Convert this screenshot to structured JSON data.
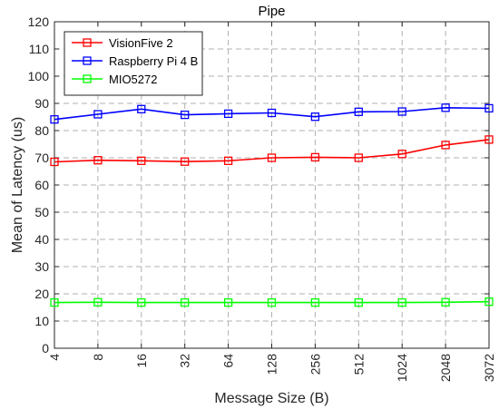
{
  "chart_data": {
    "type": "line",
    "title": "Pipe",
    "xlabel": "Message Size (B)",
    "ylabel": "Mean of Latency (us)",
    "categories": [
      "4",
      "8",
      "16",
      "32",
      "64",
      "128",
      "256",
      "512",
      "1024",
      "2048",
      "3072"
    ],
    "ylim": [
      0,
      120
    ],
    "yticks": [
      0,
      10,
      20,
      30,
      40,
      50,
      60,
      70,
      80,
      90,
      100,
      110,
      120
    ],
    "grid": true,
    "legend_position": "top-left",
    "series": [
      {
        "name": "VisionFive 2",
        "color": "#ff0000",
        "marker": "square",
        "values": [
          68.5,
          69.1,
          68.9,
          68.6,
          68.9,
          70.0,
          70.2,
          70.0,
          71.4,
          74.7,
          76.7
        ]
      },
      {
        "name": "Raspberry Pi 4 B",
        "color": "#0000ff",
        "marker": "square",
        "values": [
          84.1,
          86.0,
          87.9,
          85.8,
          86.2,
          86.5,
          85.1,
          86.9,
          87.0,
          88.4,
          88.2
        ]
      },
      {
        "name": "MIO5272",
        "color": "#00ff00",
        "marker": "square",
        "values": [
          16.8,
          16.9,
          16.8,
          16.8,
          16.8,
          16.8,
          16.8,
          16.8,
          16.8,
          16.9,
          17.1
        ]
      }
    ]
  }
}
